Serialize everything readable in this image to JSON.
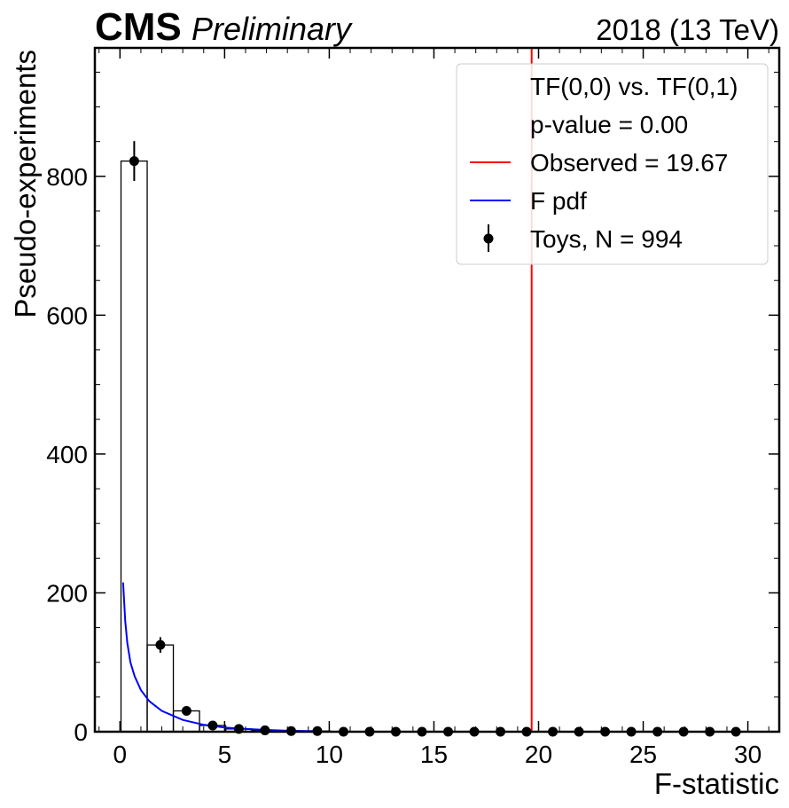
{
  "header": {
    "brand": "CMS",
    "status": "Preliminary",
    "lumi": "2018 (13 TeV)"
  },
  "chart_data": {
    "type": "bar",
    "xlabel": "F-statistic",
    "ylabel": "Pseudo-experiments",
    "xlim": [
      -1.2,
      31.5
    ],
    "ylim": [
      0,
      985
    ],
    "xticks": [
      0,
      5,
      10,
      15,
      20,
      25,
      30
    ],
    "yticks": [
      0,
      200,
      400,
      600,
      800
    ],
    "histogram": {
      "bin_edges": [
        0.05,
        1.3,
        2.55,
        3.8,
        5.05,
        6.3,
        7.55,
        8.8,
        10.05,
        11.3,
        12.55,
        13.8,
        15.05,
        16.3,
        17.55,
        18.8,
        20.05,
        21.3,
        22.55,
        23.8,
        25.05,
        26.3,
        27.55,
        28.8,
        30.05
      ],
      "counts": [
        822,
        125,
        30,
        9,
        4,
        2,
        1,
        1,
        0,
        0,
        0,
        0,
        0,
        0,
        0,
        0,
        0,
        0,
        0,
        0,
        0,
        0,
        0,
        0
      ],
      "color": "#000000"
    },
    "toys": {
      "x": [
        0.68,
        1.93,
        3.18,
        4.43,
        5.68,
        6.93,
        8.18,
        9.43,
        10.68,
        11.93,
        13.18,
        14.43,
        15.68,
        16.93,
        18.18,
        19.43,
        20.68,
        21.93,
        23.18,
        24.43,
        25.68,
        26.93,
        28.18,
        29.43
      ],
      "y": [
        822,
        125,
        30,
        9,
        4,
        2,
        1,
        1,
        0,
        0,
        0,
        0,
        0,
        0,
        0,
        0,
        0,
        0,
        0,
        0,
        0,
        0,
        0,
        0
      ],
      "yerr": [
        28.7,
        11.2,
        5.5,
        3,
        2,
        1.4,
        1,
        1,
        0,
        0,
        0,
        0,
        0,
        0,
        0,
        0,
        0,
        0,
        0,
        0,
        0,
        0,
        0,
        0
      ],
      "color": "#000000"
    },
    "f_pdf": {
      "x": [
        0.15,
        0.25,
        0.35,
        0.5,
        0.7,
        1.0,
        1.4,
        2.0,
        3.0,
        4.0,
        5.0,
        6.0,
        7.0,
        8.0,
        9.0,
        9.5
      ],
      "y": [
        215,
        160,
        128,
        100,
        80,
        60,
        44,
        30,
        17,
        10,
        6,
        4,
        2.5,
        1.5,
        1,
        0.8
      ],
      "color": "#0000ff"
    },
    "observed": {
      "x": 19.67,
      "color": "#ff0000"
    },
    "legend": {
      "position": "top-right",
      "title_line": "TF(0,0) vs. TF(0,1)",
      "pvalue_line": "p-value = 0.00",
      "entries": [
        {
          "label": "Observed = 19.67",
          "kind": "line",
          "color": "#ff0000"
        },
        {
          "label": "F pdf",
          "kind": "line",
          "color": "#0000ff"
        },
        {
          "label": "Toys, N = 994",
          "kind": "errorbar",
          "color": "#000000"
        }
      ]
    }
  }
}
